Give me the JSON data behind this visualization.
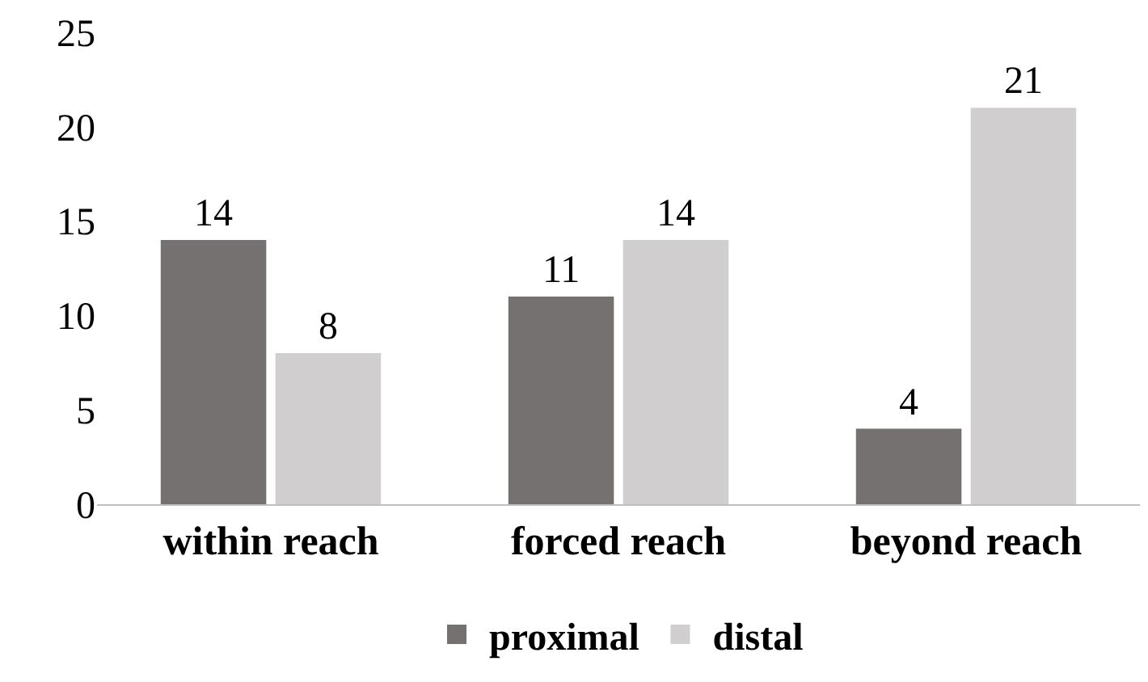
{
  "chart_data": {
    "type": "bar",
    "categories": [
      "within reach",
      "forced reach",
      "beyond reach"
    ],
    "series": [
      {
        "name": "proximal",
        "color": "#767171",
        "values": [
          14,
          11,
          4
        ]
      },
      {
        "name": "distal",
        "color": "#d0cece",
        "values": [
          8,
          14,
          21
        ]
      }
    ],
    "ylim": [
      0,
      25
    ],
    "yticks": [
      0,
      5,
      10,
      15,
      20,
      25
    ],
    "grid": false,
    "legend": "bottom",
    "data_labels": true
  }
}
